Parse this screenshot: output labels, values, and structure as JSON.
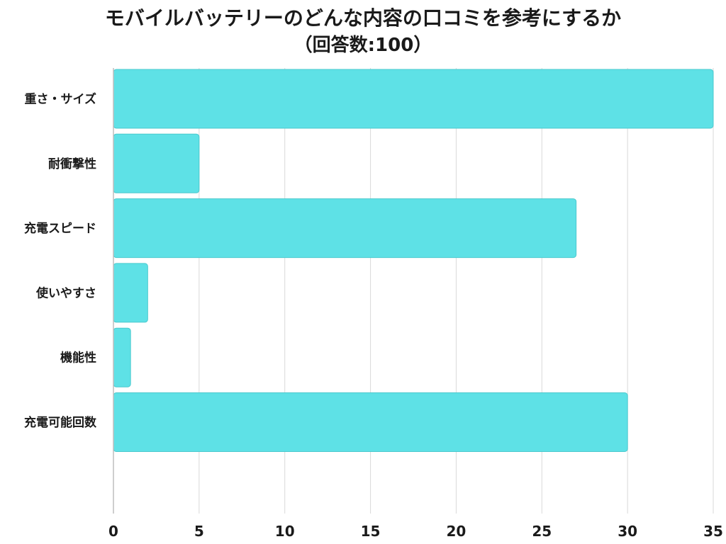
{
  "chart_data": {
    "type": "bar",
    "orientation": "horizontal",
    "title": "モバイルバッテリーのどんな内容の口コミを参考にするか",
    "subtitle": "（回答数:100）",
    "categories": [
      "重さ・サイズ",
      "耐衝撃性",
      "充電スピード",
      "使いやすさ",
      "機能性",
      "充電可能回数"
    ],
    "values": [
      35,
      5,
      27,
      2,
      1,
      30
    ],
    "xlim": [
      0,
      35
    ],
    "xticks": [
      0,
      5,
      10,
      15,
      20,
      25,
      30,
      35
    ],
    "grid": true,
    "bar_color": "#5ee1e6"
  }
}
